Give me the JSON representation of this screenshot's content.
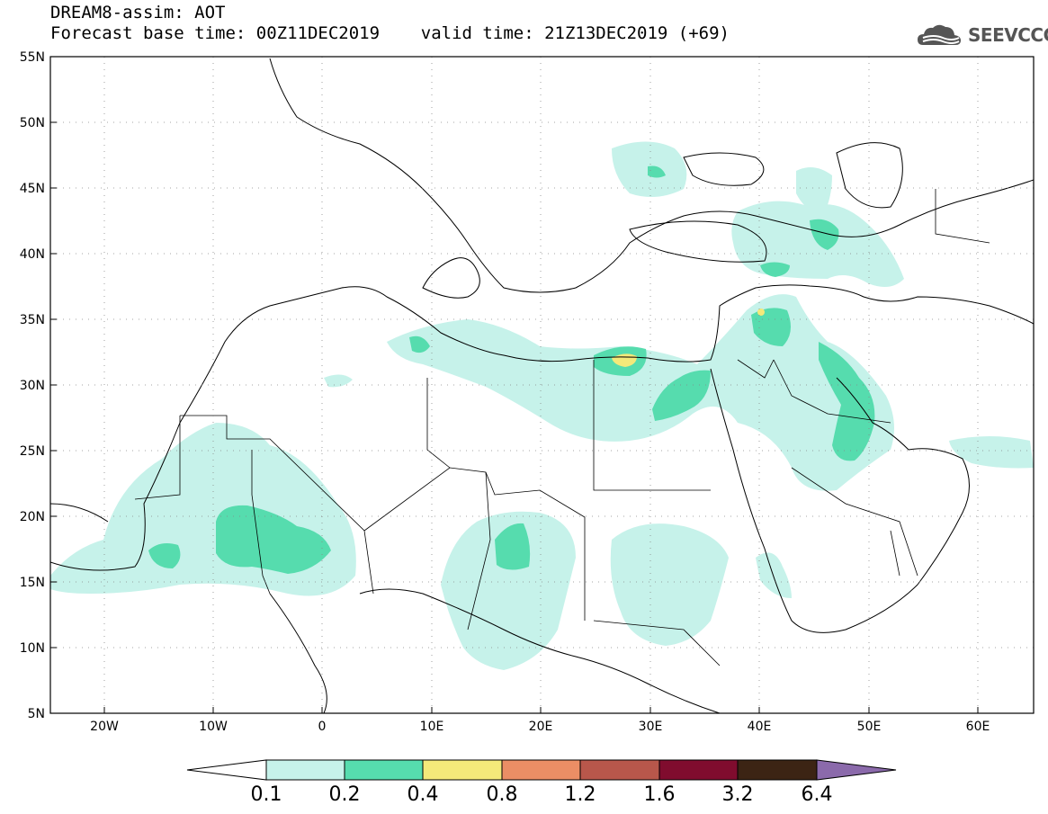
{
  "title": {
    "line1": "DREAM8-assim: AOT",
    "line2": "Forecast base time: 00Z11DEC2019    valid time: 21Z13DEC2019 (+69)"
  },
  "logo": {
    "text": "SEEVCCC",
    "icon": "cloud-logo-icon"
  },
  "map": {
    "lon_range": [
      -25,
      65
    ],
    "lat_range": [
      5,
      55
    ],
    "x_ticks": [
      "20W",
      "10W",
      "0",
      "10E",
      "20E",
      "30E",
      "40E",
      "50E",
      "60E"
    ],
    "y_ticks": [
      "55N",
      "50N",
      "45N",
      "40N",
      "35N",
      "30N",
      "25N",
      "20N",
      "15N",
      "10N",
      "5N"
    ],
    "grid": "dotted"
  },
  "legend": {
    "labels": [
      "0.1",
      "0.2",
      "0.4",
      "0.8",
      "1.2",
      "1.6",
      "3.2",
      "6.4"
    ],
    "colors": [
      "#c6f2ea",
      "#56dcae",
      "#f4e97a",
      "#eb8e65",
      "#b8574b",
      "#800c2e",
      "#3c2414",
      "#8b6aab"
    ]
  }
}
